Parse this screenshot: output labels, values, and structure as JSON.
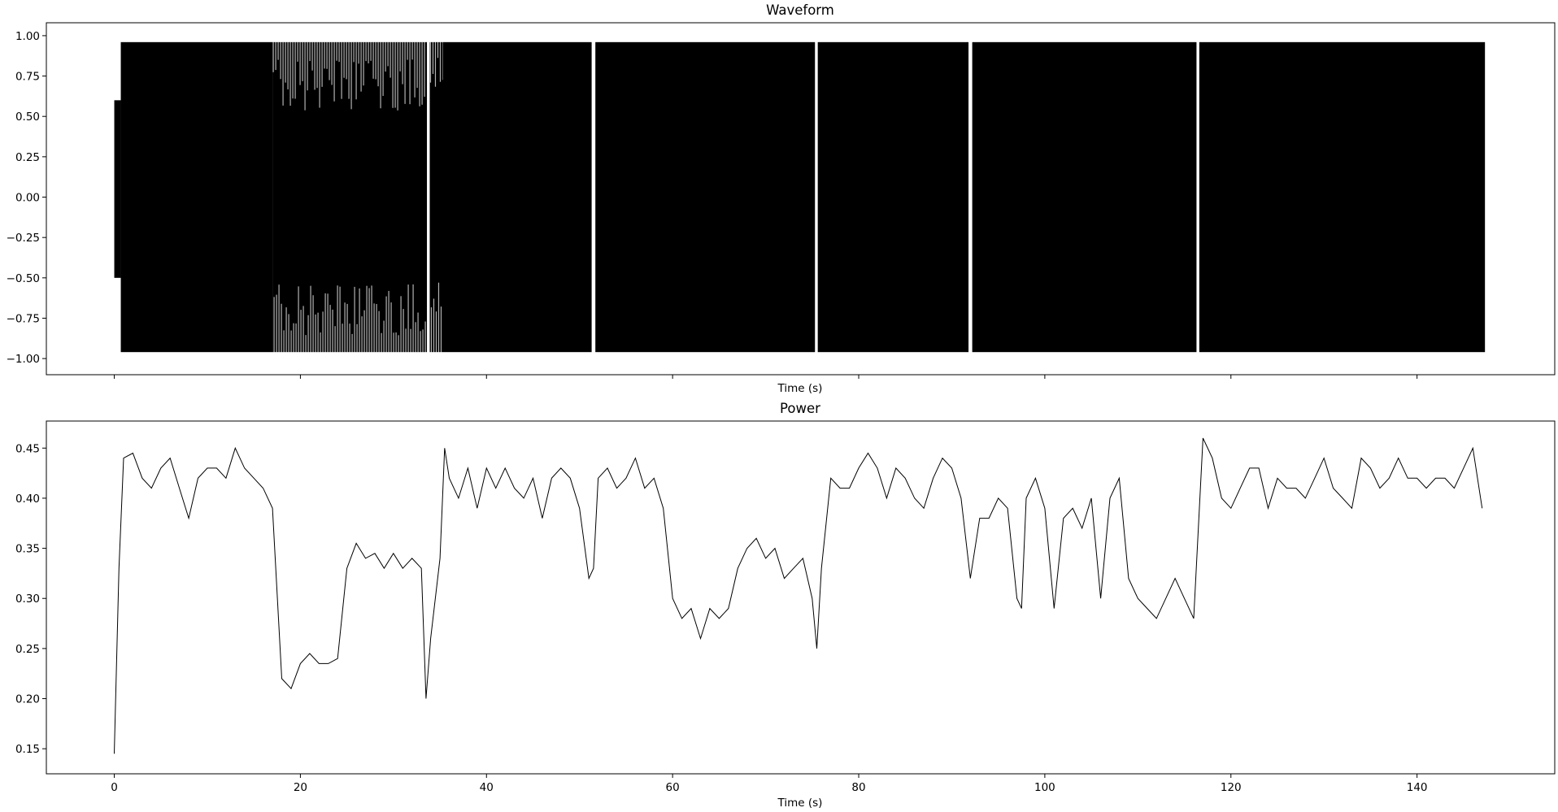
{
  "chart_data": [
    {
      "type": "area",
      "title": "Waveform",
      "xlabel": "Time (s)",
      "ylabel": "",
      "xlim": [
        -7.3,
        154.8
      ],
      "ylim": [
        -1.1,
        1.08
      ],
      "xticks": [
        0,
        20,
        40,
        60,
        80,
        100,
        120,
        140
      ],
      "xtick_labels_shown": false,
      "yticks": [
        1.0,
        0.75,
        0.5,
        0.25,
        0.0,
        -0.25,
        -0.5,
        -0.75,
        -1.0
      ],
      "ytick_labels": [
        "1.00",
        "0.75",
        "0.50",
        "0.25",
        "0.00",
        "−0.25",
        "−0.50",
        "−0.75",
        "−1.00"
      ],
      "grid": false,
      "color": "#000000",
      "envelope_segments": [
        {
          "start": 0.0,
          "end": 0.7,
          "min": -0.5,
          "max": 0.6
        },
        {
          "start": 0.7,
          "end": 17.0,
          "min": -0.96,
          "max": 0.96
        },
        {
          "start": 17.0,
          "end": 33.6,
          "min": -0.96,
          "max": 0.96,
          "density": "sparse"
        },
        {
          "start": 33.9,
          "end": 35.3,
          "min": -0.96,
          "max": 0.96,
          "density": "sparse"
        },
        {
          "start": 35.3,
          "end": 51.3,
          "min": -0.96,
          "max": 0.96
        },
        {
          "start": 51.7,
          "end": 75.3,
          "min": -0.96,
          "max": 0.96
        },
        {
          "start": 75.6,
          "end": 91.8,
          "min": -0.96,
          "max": 0.96
        },
        {
          "start": 92.2,
          "end": 116.3,
          "min": -0.96,
          "max": 0.96
        },
        {
          "start": 116.6,
          "end": 147.3,
          "min": -0.96,
          "max": 0.96
        }
      ]
    },
    {
      "type": "line",
      "title": "Power",
      "xlabel": "Time (s)",
      "ylabel": "",
      "xlim": [
        -7.3,
        154.8
      ],
      "ylim": [
        0.125,
        0.477
      ],
      "xticks": [
        0,
        20,
        40,
        60,
        80,
        100,
        120,
        140
      ],
      "xtick_labels": [
        "0",
        "20",
        "40",
        "60",
        "80",
        "100",
        "120",
        "140"
      ],
      "yticks": [
        0.45,
        0.4,
        0.35,
        0.3,
        0.25,
        0.2,
        0.15
      ],
      "ytick_labels": [
        "0.45",
        "0.40",
        "0.35",
        "0.30",
        "0.25",
        "0.20",
        "0.15"
      ],
      "grid": false,
      "color": "#000000",
      "x": [
        0,
        0.5,
        1,
        2,
        3,
        4,
        5,
        6,
        7,
        8,
        9,
        10,
        11,
        12,
        13,
        14,
        15,
        16,
        17,
        18,
        19,
        20,
        21,
        22,
        23,
        24,
        25,
        26,
        27,
        28,
        29,
        30,
        31,
        32,
        33,
        33.5,
        34,
        35,
        35.5,
        36,
        37,
        38,
        39,
        40,
        41,
        42,
        43,
        44,
        45,
        46,
        47,
        48,
        49,
        50,
        51,
        51.5,
        52,
        53,
        54,
        55,
        56,
        57,
        58,
        59,
        60,
        61,
        62,
        63,
        64,
        65,
        66,
        67,
        68,
        69,
        70,
        71,
        72,
        73,
        74,
        75,
        75.5,
        76,
        77,
        78,
        79,
        80,
        81,
        82,
        83,
        84,
        85,
        86,
        87,
        88,
        89,
        90,
        91,
        92,
        93,
        94,
        95,
        96,
        97,
        97.5,
        98,
        99,
        100,
        101,
        102,
        103,
        104,
        105,
        106,
        107,
        108,
        109,
        110,
        111,
        112,
        113,
        114,
        115,
        116,
        117,
        118,
        119,
        120,
        121,
        122,
        123,
        124,
        125,
        126,
        127,
        128,
        129,
        130,
        131,
        132,
        133,
        134,
        135,
        136,
        137,
        138,
        139,
        140,
        141,
        142,
        143,
        144,
        145,
        146,
        147
      ],
      "y": [
        0.145,
        0.33,
        0.44,
        0.445,
        0.42,
        0.41,
        0.43,
        0.44,
        0.41,
        0.38,
        0.42,
        0.43,
        0.43,
        0.42,
        0.45,
        0.43,
        0.42,
        0.41,
        0.39,
        0.22,
        0.21,
        0.235,
        0.245,
        0.235,
        0.235,
        0.24,
        0.33,
        0.355,
        0.34,
        0.345,
        0.33,
        0.345,
        0.33,
        0.34,
        0.33,
        0.2,
        0.26,
        0.34,
        0.45,
        0.42,
        0.4,
        0.43,
        0.39,
        0.43,
        0.41,
        0.43,
        0.41,
        0.4,
        0.42,
        0.38,
        0.42,
        0.43,
        0.42,
        0.39,
        0.32,
        0.33,
        0.42,
        0.43,
        0.41,
        0.42,
        0.44,
        0.41,
        0.42,
        0.39,
        0.3,
        0.28,
        0.29,
        0.26,
        0.29,
        0.28,
        0.29,
        0.33,
        0.35,
        0.36,
        0.34,
        0.35,
        0.32,
        0.33,
        0.34,
        0.3,
        0.25,
        0.33,
        0.42,
        0.41,
        0.41,
        0.43,
        0.445,
        0.43,
        0.4,
        0.43,
        0.42,
        0.4,
        0.39,
        0.42,
        0.44,
        0.43,
        0.4,
        0.32,
        0.38,
        0.38,
        0.4,
        0.39,
        0.3,
        0.29,
        0.4,
        0.42,
        0.39,
        0.29,
        0.38,
        0.39,
        0.37,
        0.4,
        0.3,
        0.4,
        0.42,
        0.32,
        0.3,
        0.29,
        0.28,
        0.3,
        0.32,
        0.3,
        0.28,
        0.46,
        0.44,
        0.4,
        0.39,
        0.41,
        0.43,
        0.43,
        0.39,
        0.42,
        0.41,
        0.41,
        0.4,
        0.42,
        0.44,
        0.41,
        0.4,
        0.39,
        0.44,
        0.43,
        0.41,
        0.42,
        0.44,
        0.42,
        0.42,
        0.41,
        0.42,
        0.42,
        0.41,
        0.43,
        0.45,
        0.39
      ]
    }
  ]
}
